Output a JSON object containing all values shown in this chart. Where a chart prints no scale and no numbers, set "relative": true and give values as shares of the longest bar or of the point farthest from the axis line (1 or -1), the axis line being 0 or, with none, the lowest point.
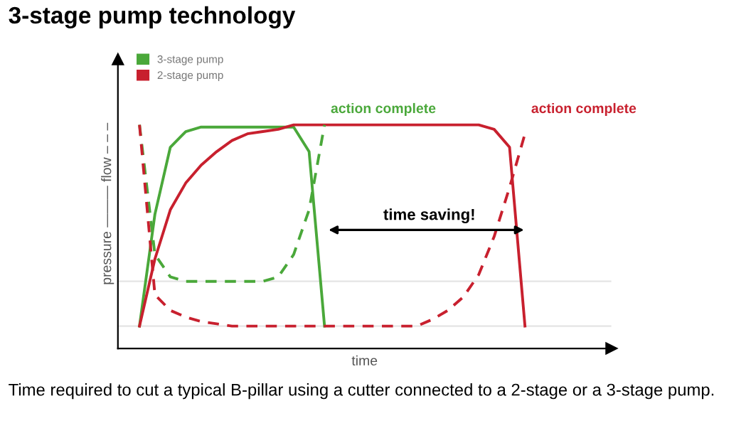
{
  "chart_data": {
    "type": "line",
    "title": "3-stage pump technology",
    "xlabel": "time",
    "ylabel": "pressure ——— flow – – –",
    "relative": true,
    "categories": [
      null,
      null,
      null,
      null,
      null,
      null,
      null,
      null,
      null,
      null,
      null,
      null,
      null,
      null,
      null,
      null,
      null,
      null,
      null,
      null,
      null,
      null,
      null,
      null,
      null,
      null,
      null,
      null,
      null,
      null,
      null
    ],
    "series": [
      {
        "name": "3-stage pump",
        "color": "#4aa83a",
        "line_style": "solid",
        "values": [
          0.1,
          0.6,
          0.9,
          0.97,
          0.99,
          0.99,
          0.99,
          0.99,
          0.99,
          0.99,
          0.99,
          0.88,
          0.1,
          null,
          null,
          null,
          null,
          null,
          null,
          null,
          null,
          null,
          null,
          null,
          null,
          null,
          null,
          null,
          null,
          null,
          null
        ]
      },
      {
        "name": "2-stage pump",
        "color": "#c8202e",
        "line_style": "solid",
        "values": [
          0.1,
          0.4,
          0.62,
          0.74,
          0.82,
          0.88,
          0.93,
          0.96,
          0.97,
          0.98,
          1.0,
          1.0,
          1.0,
          1.0,
          1.0,
          1.0,
          1.0,
          1.0,
          1.0,
          1.0,
          1.0,
          1.0,
          1.0,
          0.98,
          0.9,
          0.1,
          null,
          null,
          null,
          null,
          null
        ]
      },
      {
        "color": "#4aa83a",
        "line_style": "dashed",
        "values": [
          1.0,
          0.42,
          0.32,
          0.3,
          0.3,
          0.3,
          0.3,
          0.3,
          0.3,
          0.32,
          0.42,
          0.62,
          1.0,
          null,
          null,
          null,
          null,
          null,
          null,
          null,
          null,
          null,
          null,
          null,
          null,
          null,
          null,
          null,
          null,
          null,
          null
        ]
      },
      {
        "color": "#c8202e",
        "line_style": "dashed",
        "values": [
          1.0,
          0.24,
          0.17,
          0.14,
          0.12,
          0.11,
          0.1,
          0.1,
          0.1,
          0.1,
          0.1,
          0.1,
          0.1,
          0.1,
          0.1,
          0.1,
          0.1,
          0.1,
          0.1,
          0.13,
          0.17,
          0.23,
          0.33,
          0.5,
          0.72,
          0.96,
          null,
          null,
          null,
          null,
          null
        ]
      }
    ],
    "ref_lines": [
      {
        "axis": "y",
        "value": 0.3,
        "color": "#e4e4e4"
      },
      {
        "axis": "y",
        "value": 0.1,
        "color": "#e4e4e4"
      }
    ],
    "annotations": [
      "action complete",
      "action complete",
      "time saving!",
      "Time required to cut a typical B-pillar using a cutter connected to a 2-stage or a 3-stage pump."
    ],
    "legend": "top left",
    "grid": false
  }
}
